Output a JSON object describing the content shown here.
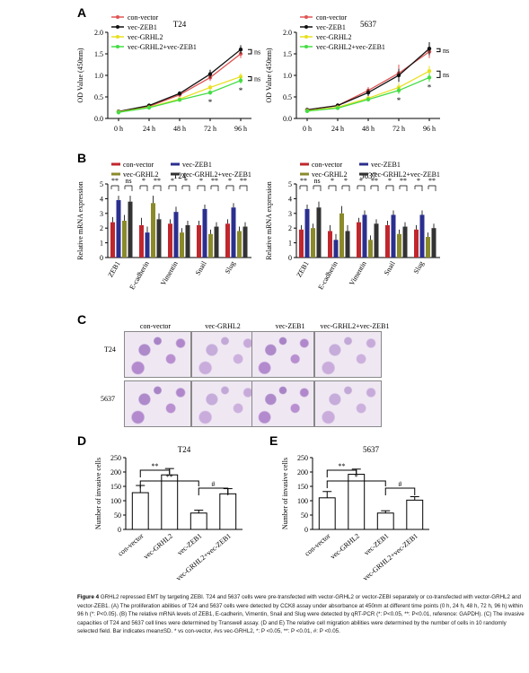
{
  "panels": {
    "A": "A",
    "B": "B",
    "C": "C",
    "D": "D",
    "E": "E"
  },
  "chart_data": [
    {
      "id": "A-T24",
      "type": "line",
      "title": "T24",
      "ylabel": "OD Value (450nm)",
      "ylim": [
        0.0,
        2.0
      ],
      "yticks": [
        "0.0",
        "0.5",
        "1.0",
        "1.5",
        "2.0"
      ],
      "categories": [
        "0 h",
        "24 h",
        "48 h",
        "72 h",
        "96 h"
      ],
      "series": [
        {
          "name": "con-vector",
          "color": "#e05555",
          "values": [
            0.15,
            0.28,
            0.55,
            0.95,
            1.5
          ],
          "err": [
            0.03,
            0.03,
            0.05,
            0.08,
            0.1
          ]
        },
        {
          "name": "vec-ZEB1",
          "color": "#111111",
          "values": [
            0.16,
            0.3,
            0.58,
            1.03,
            1.6
          ],
          "err": [
            0.03,
            0.03,
            0.05,
            0.1,
            0.1
          ]
        },
        {
          "name": "vec-GRHL2",
          "color": "#e8e020",
          "values": [
            0.15,
            0.26,
            0.45,
            0.72,
            0.97
          ],
          "err": [
            0.02,
            0.03,
            0.04,
            0.06,
            0.08
          ]
        },
        {
          "name": "vec-GRHL2+vec-ZEB1",
          "color": "#44dd44",
          "values": [
            0.14,
            0.25,
            0.43,
            0.6,
            0.88
          ],
          "err": [
            0.02,
            0.03,
            0.04,
            0.05,
            0.07
          ]
        }
      ],
      "annotations": [
        "ns",
        "ns",
        "*",
        "*"
      ]
    },
    {
      "id": "A-5637",
      "type": "line",
      "title": "5637",
      "ylabel": "OD Value (450nm)",
      "ylim": [
        0.0,
        2.0
      ],
      "yticks": [
        "0.0",
        "0.5",
        "1.0",
        "1.5",
        "2.0"
      ],
      "categories": [
        "0 h",
        "24 h",
        "48 h",
        "72 h",
        "96 h"
      ],
      "series": [
        {
          "name": "con-vector",
          "color": "#e05555",
          "values": [
            0.2,
            0.3,
            0.65,
            1.05,
            1.55
          ],
          "err": [
            0.03,
            0.05,
            0.08,
            0.2,
            0.15
          ]
        },
        {
          "name": "vec-ZEB1",
          "color": "#111111",
          "values": [
            0.2,
            0.3,
            0.6,
            1.0,
            1.62
          ],
          "err": [
            0.03,
            0.05,
            0.08,
            0.15,
            0.15
          ]
        },
        {
          "name": "vec-GRHL2",
          "color": "#e8e020",
          "values": [
            0.18,
            0.26,
            0.47,
            0.72,
            1.1
          ],
          "err": [
            0.03,
            0.04,
            0.05,
            0.1,
            0.12
          ]
        },
        {
          "name": "vec-GRHL2+vec-ZEB1",
          "color": "#44dd44",
          "values": [
            0.17,
            0.24,
            0.44,
            0.65,
            0.95
          ],
          "err": [
            0.03,
            0.04,
            0.05,
            0.08,
            0.1
          ]
        }
      ],
      "annotations": [
        "ns",
        "ns",
        "*",
        "*"
      ]
    },
    {
      "id": "B-T24",
      "type": "bar",
      "title": "T24",
      "ylabel": "Relative mRNA expression",
      "ylim": [
        0,
        5
      ],
      "yticks": [
        "0",
        "1",
        "2",
        "3",
        "4",
        "5"
      ],
      "categories": [
        "ZEB1",
        "E-cadherin",
        "Vimentin",
        "Snail",
        "Slug"
      ],
      "series": [
        {
          "name": "con-vector",
          "color": "#c0272d",
          "values": [
            2.4,
            2.2,
            2.3,
            2.2,
            2.3
          ],
          "err": [
            0.35,
            0.5,
            0.3,
            0.3,
            0.3
          ]
        },
        {
          "name": "vec-ZEB1",
          "color": "#2b2f8f",
          "values": [
            3.9,
            1.7,
            3.1,
            3.3,
            3.4
          ],
          "err": [
            0.3,
            0.4,
            0.35,
            0.3,
            0.3
          ]
        },
        {
          "name": "vec-GRHL2",
          "color": "#8b8a2b",
          "values": [
            2.5,
            3.7,
            1.7,
            1.6,
            1.8
          ],
          "err": [
            0.4,
            0.5,
            0.3,
            0.3,
            0.3
          ]
        },
        {
          "name": "vec-GRHL2+vec-ZEB1",
          "color": "#333333",
          "values": [
            3.8,
            2.6,
            2.2,
            2.1,
            2.1
          ],
          "err": [
            0.4,
            0.4,
            0.3,
            0.3,
            0.3
          ]
        }
      ],
      "annotations": [
        "**",
        "ns",
        "*",
        "**",
        "*",
        "*",
        "*",
        "**",
        "*",
        "**"
      ]
    },
    {
      "id": "B-5637",
      "type": "bar",
      "title": "5637",
      "ylabel": "Relative mRNA expression",
      "ylim": [
        0,
        5
      ],
      "yticks": [
        "0",
        "1",
        "2",
        "3",
        "4",
        "5"
      ],
      "categories": [
        "ZEB1",
        "E-cadherin",
        "Vimentin",
        "Snail",
        "Slug"
      ],
      "series": [
        {
          "name": "con-vector",
          "color": "#c0272d",
          "values": [
            1.9,
            1.8,
            2.4,
            2.2,
            1.9
          ],
          "err": [
            0.3,
            0.4,
            0.3,
            0.3,
            0.3
          ]
        },
        {
          "name": "vec-ZEB1",
          "color": "#2b2f8f",
          "values": [
            3.3,
            1.2,
            2.9,
            2.9,
            2.9
          ],
          "err": [
            0.3,
            0.4,
            0.3,
            0.3,
            0.3
          ]
        },
        {
          "name": "vec-GRHL2",
          "color": "#8b8a2b",
          "values": [
            2.0,
            3.0,
            1.2,
            1.6,
            1.4
          ],
          "err": [
            0.3,
            0.5,
            0.3,
            0.3,
            0.3
          ]
        },
        {
          "name": "vec-GRHL2+vec-ZEB1",
          "color": "#333333",
          "values": [
            3.4,
            1.8,
            2.3,
            2.1,
            2.0
          ],
          "err": [
            0.4,
            0.4,
            0.3,
            0.3,
            0.3
          ]
        }
      ],
      "annotations": [
        "**",
        "ns",
        "*",
        "*",
        "*",
        "**",
        "*",
        "**",
        "*",
        "**"
      ]
    },
    {
      "id": "D",
      "type": "bar",
      "title": "T24",
      "ylabel": "Number of invasive cells",
      "ylim": [
        0,
        250
      ],
      "yticks": [
        "0",
        "50",
        "100",
        "150",
        "200",
        "250"
      ],
      "categories": [
        "con-vector",
        "vec-GRHL2",
        "vec-ZEB1",
        "vec-GRHL2+vec-ZEB1"
      ],
      "values": [
        128,
        190,
        57,
        124
      ],
      "err": [
        25,
        22,
        10,
        18
      ],
      "annotations": [
        "**",
        "**",
        "#"
      ]
    },
    {
      "id": "E",
      "type": "bar",
      "title": "5637",
      "ylabel": "Number of invasive cells",
      "ylim": [
        0,
        250
      ],
      "yticks": [
        "0",
        "50",
        "100",
        "150",
        "200",
        "250"
      ],
      "categories": [
        "con-vector",
        "vec-GRHL2",
        "vec-ZEB1",
        "vec-GRHL2+vec-ZEB1"
      ],
      "values": [
        110,
        192,
        57,
        102
      ],
      "err": [
        22,
        18,
        8,
        12
      ],
      "annotations": [
        "**",
        "*",
        "#"
      ]
    }
  ],
  "panelC": {
    "columns": [
      "con-vector",
      "vec-GRHL2",
      "vec-ZEB1",
      "vec-GRHL2+vec-ZEB1"
    ],
    "rows": [
      "T24",
      "5637"
    ]
  },
  "caption": {
    "lead": "Figure 4",
    "text": "GRHL2 repressed EMT by targeting ZEBI. T24 and 5637 cells were pre-transfected with vector-GRHL2 or vector-ZEBI separately or co-transfected with vector-GRHL2 and vector-ZEB1. (A) The proliferation abilities of T24 and 5637 cells were detected by CCK8 assay under absorbance at 450nm at different time points (0 h, 24 h, 48 h, 72 h, 96 h) within 96 h (*: P<0.05). (B) The relative mRNA levels of ZEB1, E-cadherin, Vimentin, Snail and Slug were detected by qRT-PCR (*: P<0.05, **: P<0.01, reference: GAPDH). (C) The invasive capacities of T24 and 5637 cell lines were determined by Transwell assay. (D and E) The relative cell migration abilities were determined by the number of cells in 10 randomly selected field. Bar indicates mean±SD. * vs con-vector, #vs vec-GRHL2, *: P <0.05, **: P <0.01, #: P <0.05."
  }
}
